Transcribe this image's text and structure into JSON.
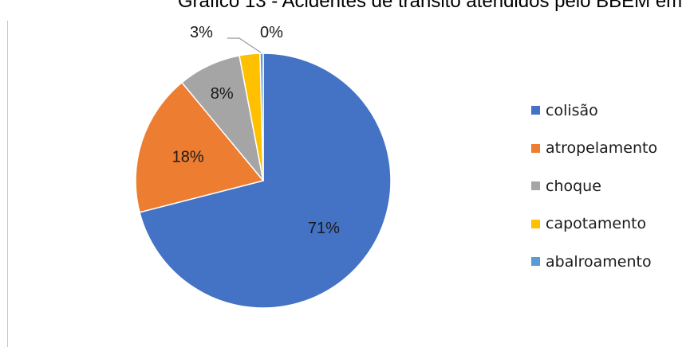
{
  "chart_data": {
    "type": "pie",
    "title": "Gráfico 13 - Acidentes de trânsito atendidos pelo BBEM em",
    "categories": [
      "colisão",
      "atropelamento",
      "choque",
      "capotamento",
      "abalroamento"
    ],
    "values": [
      71,
      18,
      8,
      2.6,
      0.4
    ],
    "labels": [
      "71%",
      "18%",
      "8%",
      "3%",
      "0%"
    ],
    "colors": [
      "#4472c4",
      "#ed7d31",
      "#a5a5a5",
      "#ffc000",
      "#5b9bd5"
    ],
    "legend_position": "right",
    "start_angle": "12 o'clock",
    "direction": "clockwise"
  }
}
